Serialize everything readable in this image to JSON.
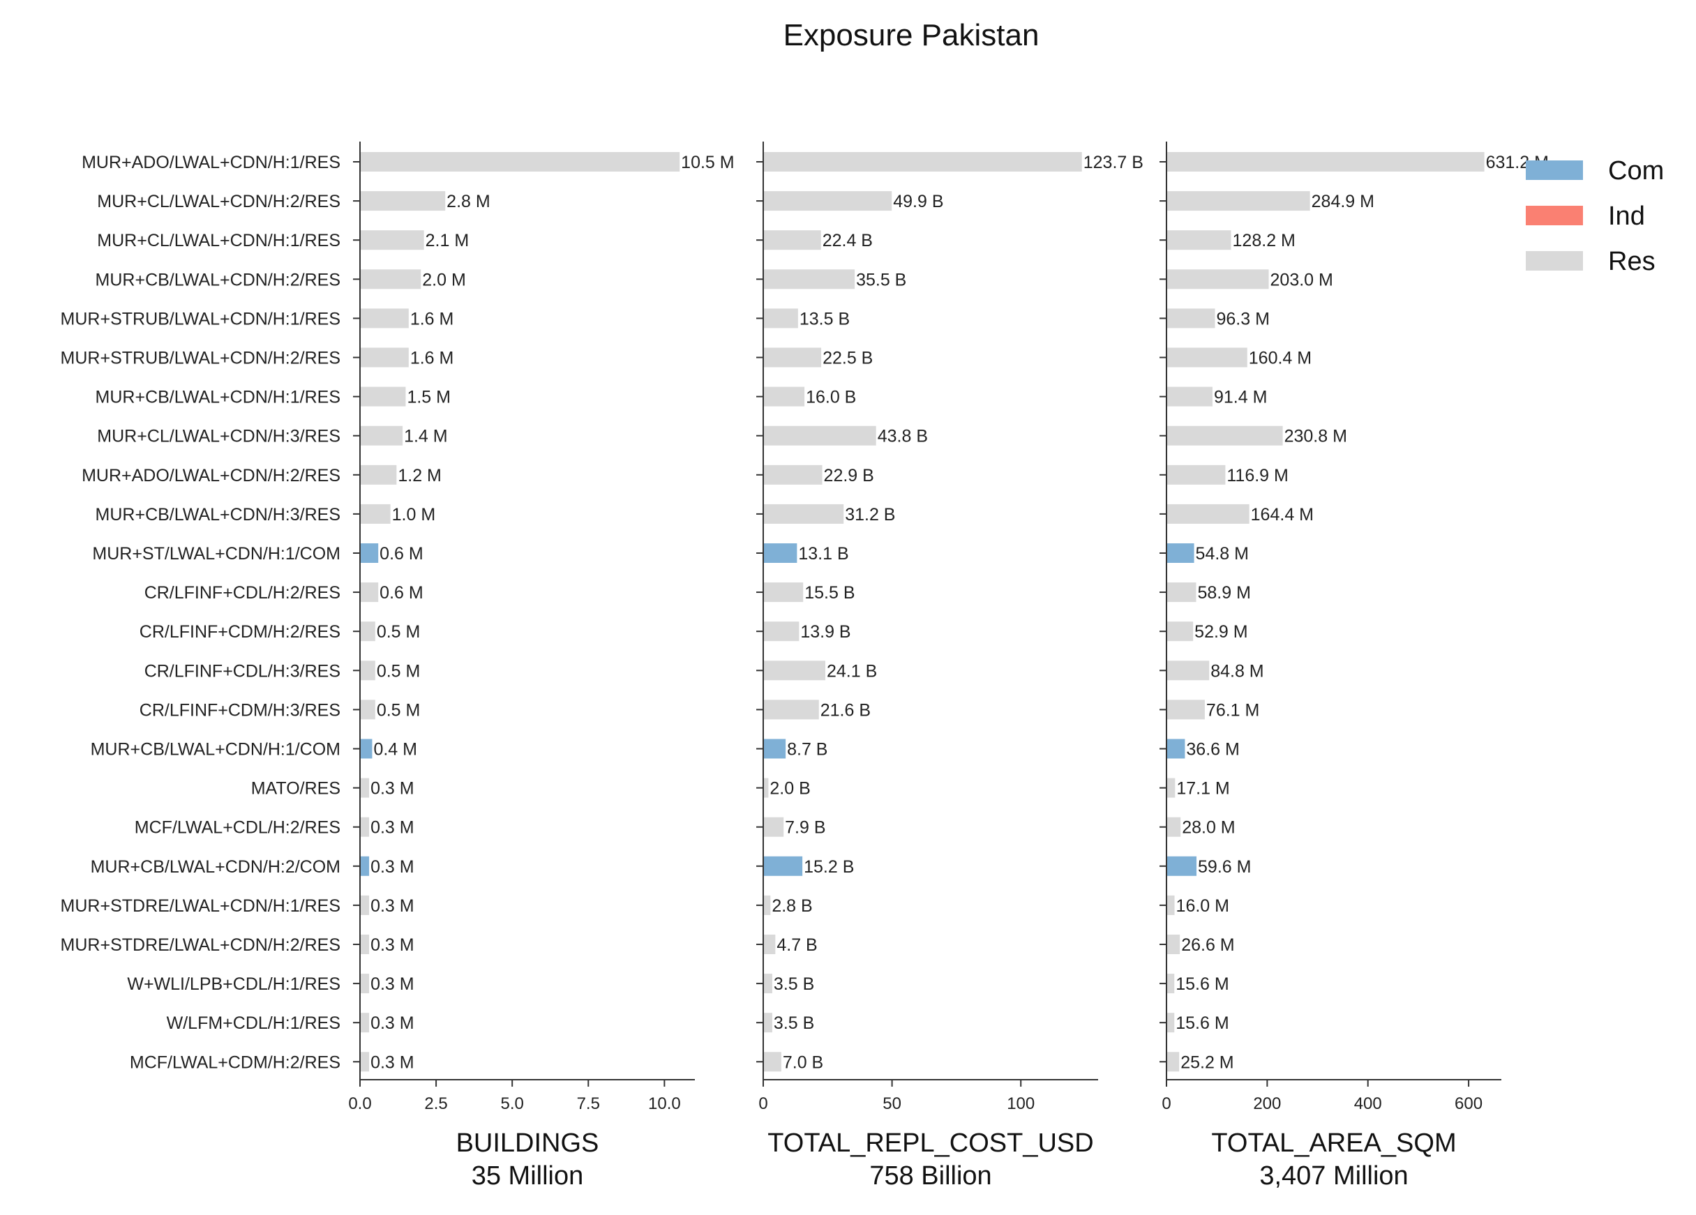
{
  "title": "Exposure Pakistan",
  "colors": {
    "Com": "#7fb0d6",
    "Ind": "#fa8072",
    "Res": "#d9d9d9"
  },
  "legend": [
    "Com",
    "Ind",
    "Res"
  ],
  "chart_data": {
    "type": "bar",
    "orientation": "horizontal",
    "title": "Exposure Pakistan",
    "legend_placement": "top-right",
    "grid": false,
    "categories": [
      "MUR+ADO/LWAL+CDN/H:1/RES",
      "MUR+CL/LWAL+CDN/H:2/RES",
      "MUR+CL/LWAL+CDN/H:1/RES",
      "MUR+CB/LWAL+CDN/H:2/RES",
      "MUR+STRUB/LWAL+CDN/H:1/RES",
      "MUR+STRUB/LWAL+CDN/H:2/RES",
      "MUR+CB/LWAL+CDN/H:1/RES",
      "MUR+CL/LWAL+CDN/H:3/RES",
      "MUR+ADO/LWAL+CDN/H:2/RES",
      "MUR+CB/LWAL+CDN/H:3/RES",
      "MUR+ST/LWAL+CDN/H:1/COM",
      "CR/LFINF+CDL/H:2/RES",
      "CR/LFINF+CDM/H:2/RES",
      "CR/LFINF+CDL/H:3/RES",
      "CR/LFINF+CDM/H:3/RES",
      "MUR+CB/LWAL+CDN/H:1/COM",
      "MATO/RES",
      "MCF/LWAL+CDL/H:2/RES",
      "MUR+CB/LWAL+CDN/H:2/COM",
      "MUR+STDRE/LWAL+CDN/H:1/RES",
      "MUR+STDRE/LWAL+CDN/H:2/RES",
      "W+WLI/LPB+CDL/H:1/RES",
      "W/LFM+CDL/H:1/RES",
      "MCF/LWAL+CDM/H:2/RES"
    ],
    "occupancy": [
      "Res",
      "Res",
      "Res",
      "Res",
      "Res",
      "Res",
      "Res",
      "Res",
      "Res",
      "Res",
      "Com",
      "Res",
      "Res",
      "Res",
      "Res",
      "Com",
      "Res",
      "Res",
      "Com",
      "Res",
      "Res",
      "Res",
      "Res",
      "Res"
    ],
    "panels": [
      {
        "xlabel": "BUILDINGS",
        "subtitle": "35 Million",
        "xlim": [
          0,
          11.0
        ],
        "ticks": [
          0,
          2.5,
          5,
          7.5,
          10
        ],
        "tick_labels": [
          "0.0",
          "2.5",
          "5.0",
          "7.5",
          "10.0"
        ],
        "values": [
          10.5,
          2.8,
          2.1,
          2.0,
          1.6,
          1.6,
          1.5,
          1.4,
          1.2,
          1.0,
          0.6,
          0.6,
          0.5,
          0.5,
          0.5,
          0.4,
          0.3,
          0.3,
          0.3,
          0.3,
          0.3,
          0.3,
          0.3,
          0.3
        ],
        "value_labels": [
          "10.5 M",
          "2.8 M",
          "2.1 M",
          "2.0 M",
          "1.6 M",
          "1.6 M",
          "1.5 M",
          "1.4 M",
          "1.2 M",
          "1.0 M",
          "0.6 M",
          "0.6 M",
          "0.5 M",
          "0.5 M",
          "0.5 M",
          "0.4 M",
          "0.3 M",
          "0.3 M",
          "0.3 M",
          "0.3 M",
          "0.3 M",
          "0.3 M",
          "0.3 M",
          "0.3 M"
        ]
      },
      {
        "xlabel": "TOTAL_REPL_COST_USD",
        "subtitle": "758 Billion",
        "xlim": [
          0,
          130
        ],
        "ticks": [
          0,
          50,
          100
        ],
        "tick_labels": [
          "0",
          "50",
          "100"
        ],
        "values": [
          123.7,
          49.9,
          22.4,
          35.5,
          13.5,
          22.5,
          16.0,
          43.8,
          22.9,
          31.2,
          13.1,
          15.5,
          13.9,
          24.1,
          21.6,
          8.7,
          2.0,
          7.9,
          15.2,
          2.8,
          4.7,
          3.5,
          3.5,
          7.0
        ],
        "value_labels": [
          "123.7 B",
          "49.9 B",
          "22.4 B",
          "35.5 B",
          "13.5 B",
          "22.5 B",
          "16.0 B",
          "43.8 B",
          "22.9 B",
          "31.2 B",
          "13.1 B",
          "15.5 B",
          "13.9 B",
          "24.1 B",
          "21.6 B",
          "8.7 B",
          "2.0 B",
          "7.9 B",
          "15.2 B",
          "2.8 B",
          "4.7 B",
          "3.5 B",
          "3.5 B",
          "7.0 B"
        ]
      },
      {
        "xlabel": "TOTAL_AREA_SQM",
        "subtitle": "3,407 Million",
        "xlim": [
          0,
          665
        ],
        "ticks": [
          0,
          200,
          400,
          600
        ],
        "tick_labels": [
          "0",
          "200",
          "400",
          "600"
        ],
        "values": [
          631.2,
          284.9,
          128.2,
          203.0,
          96.3,
          160.4,
          91.4,
          230.8,
          116.9,
          164.4,
          54.8,
          58.9,
          52.9,
          84.8,
          76.1,
          36.6,
          17.1,
          28.0,
          59.6,
          16.0,
          26.6,
          15.6,
          15.6,
          25.2
        ],
        "value_labels": [
          "631.2 M",
          "284.9 M",
          "128.2 M",
          "203.0 M",
          "96.3 M",
          "160.4 M",
          "91.4 M",
          "230.8 M",
          "116.9 M",
          "164.4 M",
          "54.8 M",
          "58.9 M",
          "52.9 M",
          "84.8 M",
          "76.1 M",
          "36.6 M",
          "17.1 M",
          "28.0 M",
          "59.6 M",
          "16.0 M",
          "26.6 M",
          "15.6 M",
          "15.6 M",
          "25.2 M"
        ]
      }
    ]
  }
}
